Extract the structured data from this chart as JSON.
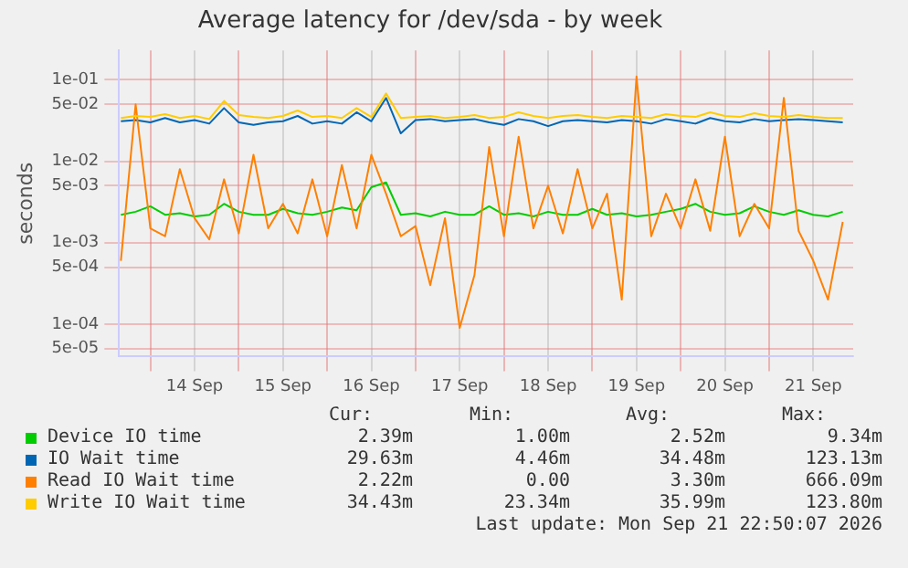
{
  "chart_data": {
    "type": "line",
    "title": "Average latency for /dev/sda - by week",
    "ylabel": "seconds",
    "log": "y",
    "grid": true,
    "legend": "bottom",
    "marker": "none",
    "line_style": "solid",
    "ylim": [
      4e-05,
      0.23
    ],
    "yticks": [
      {
        "value": 0.1,
        "label": "1e-01"
      },
      {
        "value": 0.05,
        "label": "5e-02"
      },
      {
        "value": 0.01,
        "label": "1e-02"
      },
      {
        "value": 0.005,
        "label": "5e-03"
      },
      {
        "value": 0.001,
        "label": "1e-03"
      },
      {
        "value": 0.0005,
        "label": "5e-04"
      },
      {
        "value": 0.0001,
        "label": "1e-04"
      },
      {
        "value": 5e-05,
        "label": "5e-05"
      }
    ],
    "xlim": [
      "2026-09-13T15:30",
      "2026-09-21T22:50"
    ],
    "xticks": [
      {
        "value": "2026-09-14T00:00",
        "label": null
      },
      {
        "value": "2026-09-14T12:00",
        "label": "14 Sep"
      },
      {
        "value": "2026-09-15T00:00",
        "label": null
      },
      {
        "value": "2026-09-15T12:00",
        "label": "15 Sep"
      },
      {
        "value": "2026-09-16T00:00",
        "label": null
      },
      {
        "value": "2026-09-16T12:00",
        "label": "16 Sep"
      },
      {
        "value": "2026-09-17T00:00",
        "label": null
      },
      {
        "value": "2026-09-17T12:00",
        "label": "17 Sep"
      },
      {
        "value": "2026-09-18T00:00",
        "label": null
      },
      {
        "value": "2026-09-18T12:00",
        "label": "18 Sep"
      },
      {
        "value": "2026-09-19T00:00",
        "label": null
      },
      {
        "value": "2026-09-19T12:00",
        "label": "19 Sep"
      },
      {
        "value": "2026-09-20T00:00",
        "label": null
      },
      {
        "value": "2026-09-20T12:00",
        "label": "20 Sep"
      },
      {
        "value": "2026-09-21T00:00",
        "label": null
      },
      {
        "value": "2026-09-21T12:00",
        "label": "21 Sep"
      }
    ],
    "x": [
      "2026-09-13T16:00",
      "2026-09-13T20:00",
      "2026-09-14T00:00",
      "2026-09-14T04:00",
      "2026-09-14T08:00",
      "2026-09-14T12:00",
      "2026-09-14T16:00",
      "2026-09-14T20:00",
      "2026-09-15T00:00",
      "2026-09-15T04:00",
      "2026-09-15T08:00",
      "2026-09-15T12:00",
      "2026-09-15T16:00",
      "2026-09-15T20:00",
      "2026-09-16T00:00",
      "2026-09-16T04:00",
      "2026-09-16T08:00",
      "2026-09-16T12:00",
      "2026-09-16T16:00",
      "2026-09-16T20:00",
      "2026-09-17T00:00",
      "2026-09-17T04:00",
      "2026-09-17T08:00",
      "2026-09-17T12:00",
      "2026-09-17T16:00",
      "2026-09-17T20:00",
      "2026-09-18T00:00",
      "2026-09-18T04:00",
      "2026-09-18T08:00",
      "2026-09-18T12:00",
      "2026-09-18T16:00",
      "2026-09-18T20:00",
      "2026-09-19T00:00",
      "2026-09-19T04:00",
      "2026-09-19T08:00",
      "2026-09-19T12:00",
      "2026-09-19T16:00",
      "2026-09-19T20:00",
      "2026-09-20T00:00",
      "2026-09-20T04:00",
      "2026-09-20T08:00",
      "2026-09-20T12:00",
      "2026-09-20T16:00",
      "2026-09-20T20:00",
      "2026-09-21T00:00",
      "2026-09-21T04:00",
      "2026-09-21T08:00",
      "2026-09-21T12:00",
      "2026-09-21T16:00",
      "2026-09-21T20:00"
    ],
    "series": [
      {
        "name": "Device IO time",
        "color": "#00cc00",
        "values": [
          0.0022,
          0.0024,
          0.0028,
          0.0022,
          0.0023,
          0.0021,
          0.0022,
          0.003,
          0.0024,
          0.0022,
          0.0022,
          0.0026,
          0.0023,
          0.0022,
          0.0024,
          0.0027,
          0.0025,
          0.0048,
          0.0055,
          0.0022,
          0.0023,
          0.0021,
          0.0024,
          0.0022,
          0.0022,
          0.0028,
          0.0022,
          0.0023,
          0.0021,
          0.0024,
          0.0022,
          0.0022,
          0.0026,
          0.0022,
          0.0023,
          0.0021,
          0.0022,
          0.0024,
          0.0026,
          0.003,
          0.0024,
          0.0022,
          0.0023,
          0.0028,
          0.0024,
          0.0022,
          0.0025,
          0.0022,
          0.0021,
          0.0024
        ]
      },
      {
        "name": "IO Wait time",
        "color": "#0066b3",
        "values": [
          0.031,
          0.032,
          0.03,
          0.034,
          0.03,
          0.032,
          0.029,
          0.045,
          0.03,
          0.028,
          0.03,
          0.031,
          0.036,
          0.029,
          0.031,
          0.029,
          0.04,
          0.031,
          0.06,
          0.022,
          0.032,
          0.033,
          0.031,
          0.032,
          0.033,
          0.03,
          0.028,
          0.033,
          0.031,
          0.027,
          0.031,
          0.032,
          0.031,
          0.03,
          0.032,
          0.031,
          0.029,
          0.033,
          0.031,
          0.029,
          0.034,
          0.031,
          0.03,
          0.033,
          0.031,
          0.032,
          0.033,
          0.032,
          0.031,
          0.03
        ]
      },
      {
        "name": "Read IO Wait time",
        "color": "#ff8000",
        "values": [
          0.0006,
          0.05,
          0.0015,
          0.0012,
          0.008,
          0.002,
          0.0011,
          0.006,
          0.0013,
          0.012,
          0.0015,
          0.003,
          0.0013,
          0.006,
          0.0012,
          0.009,
          0.0015,
          0.012,
          0.004,
          0.0012,
          0.0016,
          0.0003,
          0.002,
          9e-05,
          0.0004,
          0.015,
          0.0012,
          0.02,
          0.0015,
          0.005,
          0.0013,
          0.008,
          0.0015,
          0.004,
          0.0002,
          0.11,
          0.0012,
          0.004,
          0.0015,
          0.006,
          0.0014,
          0.02,
          0.0012,
          0.003,
          0.0015,
          0.06,
          0.0014,
          0.0006,
          0.0002,
          0.0018
        ]
      },
      {
        "name": "Write IO Wait time",
        "color": "#ffcc00",
        "values": [
          0.034,
          0.036,
          0.035,
          0.038,
          0.034,
          0.036,
          0.033,
          0.055,
          0.037,
          0.035,
          0.034,
          0.036,
          0.042,
          0.035,
          0.036,
          0.034,
          0.045,
          0.035,
          0.068,
          0.034,
          0.035,
          0.036,
          0.034,
          0.035,
          0.037,
          0.034,
          0.035,
          0.04,
          0.036,
          0.034,
          0.036,
          0.037,
          0.035,
          0.034,
          0.036,
          0.035,
          0.034,
          0.038,
          0.036,
          0.035,
          0.04,
          0.036,
          0.035,
          0.039,
          0.036,
          0.035,
          0.037,
          0.035,
          0.034,
          0.034
        ]
      }
    ],
    "annotations": [
      "Cur:",
      "Min:",
      "Avg:",
      "Max:",
      "2.39m",
      "1.00m",
      "2.52m",
      "9.34m",
      "29.63m",
      "4.46m",
      "34.48m",
      "123.13m",
      "2.22m",
      "0.00",
      "3.30m",
      "666.09m",
      "34.43m",
      "23.34m",
      "35.99m",
      "123.80m",
      "Last update: Mon Sep 21 22:50:07 2026"
    ]
  }
}
